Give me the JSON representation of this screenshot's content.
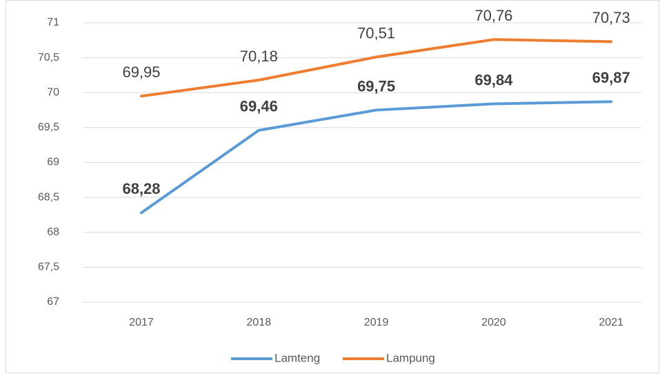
{
  "chart_data": {
    "type": "line",
    "categories": [
      "2017",
      "2018",
      "2019",
      "2020",
      "2021"
    ],
    "series": [
      {
        "name": "Lamteng",
        "color": "#5b9bd5",
        "values": [
          68.28,
          69.46,
          69.75,
          69.84,
          69.87
        ],
        "value_labels": [
          "68,28",
          "69,46",
          "69,75",
          "69,84",
          "69,87"
        ]
      },
      {
        "name": "Lampung",
        "color": "#ed7d31",
        "values": [
          69.95,
          70.18,
          70.51,
          70.76,
          70.73
        ],
        "value_labels": [
          "69,95",
          "70,18",
          "70,51",
          "70,76",
          "70,73"
        ]
      }
    ],
    "ylim": [
      67,
      71
    ],
    "yticks": [
      67,
      {
        "value": 67.5,
        "label": "67,5"
      },
      68,
      {
        "value": 68.5,
        "label": "68,5"
      },
      69,
      {
        "value": 69.5,
        "label": "69,5"
      },
      70,
      {
        "value": 70.5,
        "label": "70,5"
      },
      71
    ],
    "grid": true,
    "legend": "bottom"
  }
}
